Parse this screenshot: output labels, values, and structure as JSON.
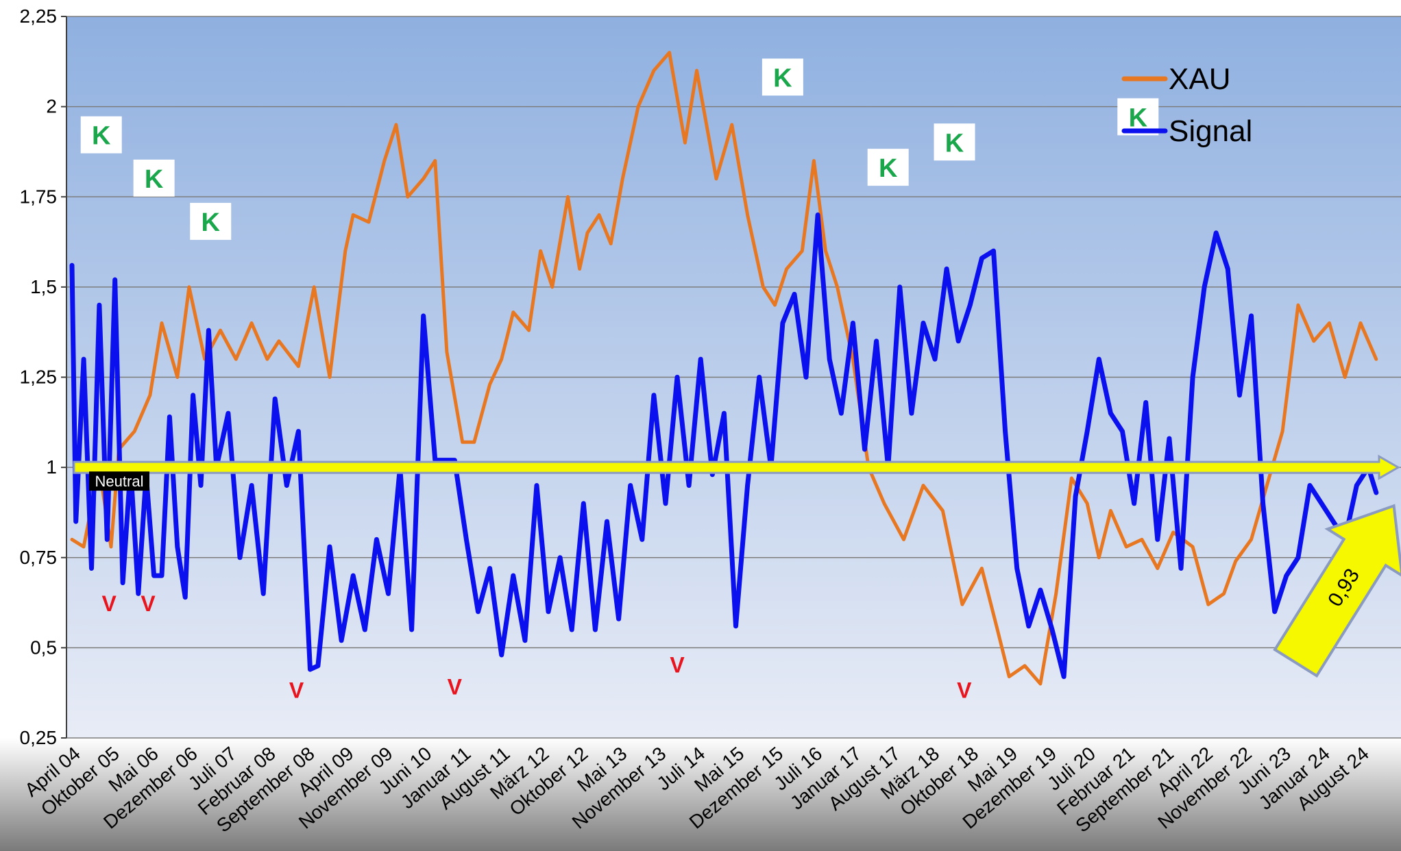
{
  "chart_data": {
    "type": "line",
    "title": "",
    "xlabel": "",
    "ylabel": "",
    "ylim": [
      0.25,
      2.25
    ],
    "y_ticks": [
      "0,25",
      "0,5",
      "0,75",
      "1",
      "1,25",
      "1,5",
      "1,75",
      "2",
      "2,25"
    ],
    "y_tick_values": [
      0.25,
      0.5,
      0.75,
      1,
      1.25,
      1.5,
      1.75,
      2,
      2.25
    ],
    "x_ticks": [
      "April 04",
      "Oktober 05",
      "Mai 06",
      "Dezember 06",
      "Juli 07",
      "Februar 08",
      "September 08",
      "April 09",
      "November 09",
      "Juni 10",
      "Januar 11",
      "August 11",
      "März 12",
      "Oktober 12",
      "Mai 13",
      "November 13",
      "Juli 14",
      "Mai 15",
      "Dezember 15",
      "Juli 16",
      "Januar 17",
      "August 17",
      "März 18",
      "Oktober 18",
      "Mai 19",
      "Dezember 19",
      "Juli 20",
      "Februar 21",
      "September 21",
      "April 22",
      "November 22",
      "Juni 23",
      "Januar 24",
      "August 24"
    ],
    "grid": true,
    "legend_position": "top-right",
    "series": [
      {
        "name": "XAU",
        "color": "#e87722",
        "x": [
          0,
          0.3,
          0.7,
          1.0,
          1.2,
          1.6,
          2.0,
          2.3,
          2.7,
          3.0,
          3.4,
          3.8,
          4.2,
          4.6,
          5.0,
          5.3,
          5.8,
          6.2,
          6.6,
          7.0,
          7.2,
          7.6,
          8.0,
          8.3,
          8.6,
          9.0,
          9.3,
          9.6,
          10.0,
          10.3,
          10.7,
          11.0,
          11.3,
          11.7,
          12.0,
          12.3,
          12.7,
          13.0,
          13.2,
          13.5,
          13.8,
          14.1,
          14.5,
          14.9,
          15.3,
          15.7,
          16.0,
          16.5,
          16.9,
          17.3,
          17.7,
          18.0,
          18.3,
          18.7,
          19.0,
          19.3,
          19.6,
          20.0,
          20.4,
          20.8,
          21.3,
          21.8,
          22.3,
          22.8,
          23.3,
          23.7,
          24.0,
          24.4,
          24.8,
          25.2,
          25.6,
          26.0,
          26.3,
          26.6,
          27.0,
          27.4,
          27.8,
          28.2,
          28.7,
          29.1,
          29.5,
          29.8,
          30.2,
          30.6,
          31.0,
          31.4,
          31.8,
          32.2,
          32.6,
          33.0,
          33.4
        ],
        "values": [
          0.8,
          0.78,
          1.0,
          0.78,
          1.05,
          1.1,
          1.2,
          1.4,
          1.25,
          1.5,
          1.3,
          1.38,
          1.3,
          1.4,
          1.3,
          1.35,
          1.28,
          1.5,
          1.25,
          1.6,
          1.7,
          1.68,
          1.85,
          1.95,
          1.75,
          1.8,
          1.85,
          1.32,
          1.07,
          1.07,
          1.23,
          1.3,
          1.43,
          1.38,
          1.6,
          1.5,
          1.75,
          1.55,
          1.65,
          1.7,
          1.62,
          1.8,
          2.0,
          2.1,
          2.15,
          1.9,
          2.1,
          1.8,
          1.95,
          1.7,
          1.5,
          1.45,
          1.55,
          1.6,
          1.85,
          1.6,
          1.5,
          1.3,
          1.0,
          0.9,
          0.8,
          0.95,
          0.88,
          0.62,
          0.72,
          0.55,
          0.42,
          0.45,
          0.4,
          0.65,
          0.97,
          0.9,
          0.75,
          0.88,
          0.78,
          0.8,
          0.72,
          0.82,
          0.78,
          0.62,
          0.65,
          0.74,
          0.8,
          0.95,
          1.1,
          1.45,
          1.35,
          1.4,
          1.25,
          1.4,
          1.3
        ]
      },
      {
        "name": "Signal",
        "color": "#0a10ee",
        "x": [
          0,
          0.1,
          0.3,
          0.5,
          0.7,
          0.9,
          1.1,
          1.3,
          1.5,
          1.7,
          1.9,
          2.1,
          2.3,
          2.5,
          2.7,
          2.9,
          3.1,
          3.3,
          3.5,
          3.7,
          4.0,
          4.3,
          4.6,
          4.9,
          5.2,
          5.5,
          5.8,
          6.1,
          6.3,
          6.6,
          6.9,
          7.2,
          7.5,
          7.8,
          8.1,
          8.4,
          8.7,
          9.0,
          9.3,
          9.6,
          9.8,
          10.1,
          10.4,
          10.7,
          11.0,
          11.3,
          11.6,
          11.9,
          12.2,
          12.5,
          12.8,
          13.1,
          13.4,
          13.7,
          14.0,
          14.3,
          14.6,
          14.9,
          15.2,
          15.5,
          15.8,
          16.1,
          16.4,
          16.7,
          17.0,
          17.3,
          17.6,
          17.9,
          18.2,
          18.5,
          18.8,
          19.1,
          19.4,
          19.7,
          20.0,
          20.3,
          20.6,
          20.9,
          21.2,
          21.5,
          21.8,
          22.1,
          22.4,
          22.7,
          23.0,
          23.3,
          23.6,
          23.9,
          24.2,
          24.5,
          24.8,
          25.1,
          25.4,
          25.7,
          26.0,
          26.3,
          26.6,
          26.9,
          27.2,
          27.5,
          27.8,
          28.1,
          28.4,
          28.7,
          29.0,
          29.3,
          29.6,
          29.9,
          30.2,
          30.5,
          30.8,
          31.1,
          31.4,
          31.7,
          32.0,
          32.3,
          32.6,
          32.9,
          33.2,
          33.4
        ],
        "values": [
          1.56,
          0.85,
          1.3,
          0.72,
          1.45,
          0.8,
          1.52,
          0.68,
          1.0,
          0.65,
          0.98,
          0.7,
          0.7,
          1.14,
          0.78,
          0.64,
          1.2,
          0.95,
          1.38,
          1.0,
          1.15,
          0.75,
          0.95,
          0.65,
          1.19,
          0.95,
          1.1,
          0.44,
          0.45,
          0.78,
          0.52,
          0.7,
          0.55,
          0.8,
          0.65,
          1.0,
          0.55,
          1.42,
          1.02,
          1.02,
          1.02,
          0.8,
          0.6,
          0.72,
          0.48,
          0.7,
          0.52,
          0.95,
          0.6,
          0.75,
          0.55,
          0.9,
          0.55,
          0.85,
          0.58,
          0.95,
          0.8,
          1.2,
          0.9,
          1.25,
          0.95,
          1.3,
          0.98,
          1.15,
          0.56,
          0.95,
          1.25,
          1.0,
          1.4,
          1.48,
          1.25,
          1.7,
          1.3,
          1.15,
          1.4,
          1.05,
          1.35,
          1.0,
          1.5,
          1.15,
          1.4,
          1.3,
          1.55,
          1.35,
          1.45,
          1.58,
          1.6,
          1.1,
          0.72,
          0.56,
          0.66,
          0.55,
          0.42,
          0.92,
          1.1,
          1.3,
          1.15,
          1.1,
          0.9,
          1.18,
          0.8,
          1.08,
          0.72,
          1.25,
          1.5,
          1.65,
          1.55,
          1.2,
          1.42,
          0.9,
          0.6,
          0.7,
          0.75,
          0.95,
          0.9,
          0.85,
          0.8,
          0.95,
          1.0,
          0.93
        ]
      }
    ],
    "annotations": {
      "k_markers": [
        {
          "text": "K",
          "x": 0.75,
          "y": 1.92
        },
        {
          "text": "K",
          "x": 2.1,
          "y": 1.8
        },
        {
          "text": "K",
          "x": 3.55,
          "y": 1.68
        },
        {
          "text": "K",
          "x": 18.2,
          "y": 2.08
        },
        {
          "text": "K",
          "x": 20.9,
          "y": 1.83
        },
        {
          "text": "K",
          "x": 22.6,
          "y": 1.9
        },
        {
          "text": "K",
          "x": 27.3,
          "y": 1.97
        }
      ],
      "v_markers": [
        {
          "text": "V",
          "x": 0.95,
          "y": 0.62
        },
        {
          "text": "V",
          "x": 1.95,
          "y": 0.62
        },
        {
          "text": "V",
          "x": 5.75,
          "y": 0.38
        },
        {
          "text": "V",
          "x": 9.8,
          "y": 0.39
        },
        {
          "text": "V",
          "x": 15.5,
          "y": 0.45
        },
        {
          "text": "V",
          "x": 22.85,
          "y": 0.38
        }
      ],
      "neutral_label": "Neutral",
      "neutral_level": 1,
      "current_value_label": "0,93"
    }
  }
}
